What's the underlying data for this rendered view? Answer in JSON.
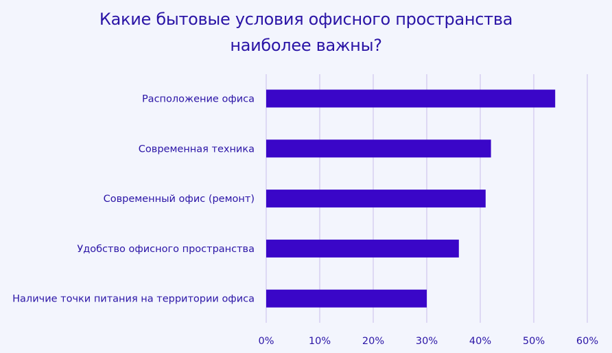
{
  "chart_data": {
    "type": "bar",
    "orientation": "horizontal",
    "title_lines": [
      "Какие бытовые условия офисного пространства",
      "наиболее важны?"
    ],
    "categories": [
      "Расположение офиса",
      "Современная техника",
      "Современный офис (ремонт)",
      "Удобство офисного пространства",
      "Наличие точки питания на территории офиса"
    ],
    "values": [
      54,
      42,
      41,
      36,
      30
    ],
    "xlim": [
      0,
      60
    ],
    "x_ticks": [
      0,
      10,
      20,
      30,
      40,
      50,
      60
    ],
    "x_tick_labels": [
      "0%",
      "10%",
      "20%",
      "30%",
      "40%",
      "50%",
      "60%"
    ],
    "grid": "vertical",
    "legend": "none",
    "colors": {
      "bar": "#3a06c8",
      "text": "#2a14a6",
      "grid": "#cfc6ee",
      "background": "#f3f5fd"
    }
  }
}
